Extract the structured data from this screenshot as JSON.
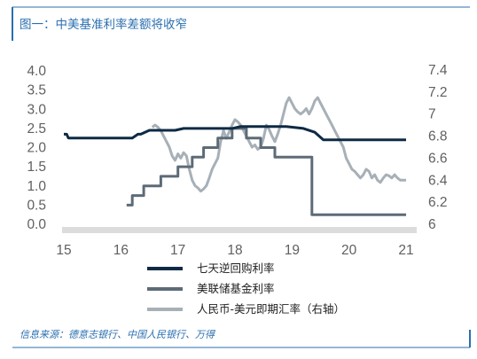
{
  "title": "图一：中美基准利率差额将收窄",
  "source": "信息来源：德意志银行、中国人民银行、万得",
  "colors": {
    "frame": "#2a6fb0",
    "reverse_repo": "#0e2a44",
    "fed_rate": "#5d6b78",
    "usdcny": "#a7b0b7",
    "axis_band": "#dcdcdc"
  },
  "chart_data": {
    "type": "line",
    "x_ticks": [
      "15",
      "16",
      "17",
      "18",
      "19",
      "20",
      "21"
    ],
    "xlim": [
      2015,
      2021
    ],
    "y_left_ticks": [
      "0.0",
      "0.5",
      "1.0",
      "1.5",
      "2.0",
      "2.5",
      "3.0",
      "3.5",
      "4.0"
    ],
    "y_left_lim": [
      0,
      4
    ],
    "y_right_ticks": [
      "6",
      "6.2",
      "6.4",
      "6.6",
      "6.8",
      "7",
      "7.2",
      "7.4"
    ],
    "y_right_lim": [
      6,
      7.4
    ],
    "grid": false,
    "legend_position": "bottom",
    "series": [
      {
        "name": "七天逆回购利率",
        "axis": "left",
        "color": "#0e2a44",
        "step": true,
        "x": [
          2015.0,
          2015.05,
          2015.08,
          2016.2,
          2016.3,
          2016.35,
          2016.5,
          2016.95,
          2017.1,
          2017.95,
          2018.1,
          2018.9,
          2019.2,
          2019.4,
          2019.55,
          2021.0
        ],
        "y": [
          2.35,
          2.35,
          2.25,
          2.25,
          2.35,
          2.35,
          2.45,
          2.45,
          2.5,
          2.5,
          2.55,
          2.55,
          2.5,
          2.4,
          2.2,
          2.2
        ]
      },
      {
        "name": "美联储基金利率",
        "axis": "left",
        "color": "#5d6b78",
        "step": true,
        "x": [
          2016.1,
          2016.2,
          2016.2,
          2016.4,
          2016.4,
          2016.7,
          2016.7,
          2017.0,
          2017.0,
          2017.25,
          2017.25,
          2017.45,
          2017.45,
          2017.7,
          2017.7,
          2017.95,
          2017.95,
          2018.2,
          2018.2,
          2018.45,
          2018.45,
          2018.7,
          2018.7,
          2018.95,
          2018.95,
          2019.1,
          2019.1,
          2019.35,
          2019.35,
          2021.0
        ],
        "y": [
          0.5,
          0.5,
          0.75,
          0.75,
          1.0,
          1.0,
          1.25,
          1.25,
          1.5,
          1.5,
          1.75,
          1.75,
          2.0,
          2.0,
          2.25,
          2.25,
          2.5,
          2.5,
          2.25,
          2.25,
          2.0,
          2.0,
          1.75,
          1.75,
          1.75,
          1.75,
          1.75,
          1.75,
          0.25,
          0.25
        ]
      },
      {
        "name": "人民币-美元即期汇率（右轴）",
        "axis": "right",
        "color": "#a7b0b7",
        "step": false,
        "x": [
          2016.55,
          2016.6,
          2016.65,
          2016.7,
          2016.75,
          2016.8,
          2016.85,
          2016.9,
          2016.95,
          2017.0,
          2017.05,
          2017.1,
          2017.15,
          2017.2,
          2017.25,
          2017.3,
          2017.35,
          2017.4,
          2017.45,
          2017.5,
          2017.55,
          2017.6,
          2017.65,
          2017.7,
          2017.75,
          2017.8,
          2017.85,
          2017.9,
          2017.95,
          2018.0,
          2018.05,
          2018.1,
          2018.15,
          2018.2,
          2018.25,
          2018.3,
          2018.35,
          2018.4,
          2018.45,
          2018.5,
          2018.55,
          2018.6,
          2018.65,
          2018.7,
          2018.75,
          2018.8,
          2018.85,
          2018.9,
          2018.95,
          2019.0,
          2019.05,
          2019.1,
          2019.15,
          2019.2,
          2019.25,
          2019.3,
          2019.35,
          2019.4,
          2019.45,
          2019.5,
          2019.55,
          2019.6,
          2019.65,
          2019.7,
          2019.75,
          2019.8,
          2019.85,
          2019.9,
          2019.95,
          2020.0,
          2020.05,
          2020.1,
          2020.15,
          2020.2,
          2020.25,
          2020.3,
          2020.35,
          2020.4,
          2020.45,
          2020.5,
          2020.55,
          2020.6,
          2020.65,
          2020.7,
          2020.75,
          2020.8,
          2020.85,
          2020.9,
          2020.95,
          2021.0
        ],
        "y": [
          6.88,
          6.9,
          6.88,
          6.85,
          6.8,
          6.75,
          6.7,
          6.62,
          6.58,
          6.64,
          6.6,
          6.65,
          6.62,
          6.5,
          6.4,
          6.35,
          6.33,
          6.3,
          6.32,
          6.35,
          6.42,
          6.5,
          6.55,
          6.6,
          6.75,
          6.85,
          6.78,
          6.84,
          6.9,
          6.95,
          6.93,
          6.9,
          6.85,
          6.8,
          6.75,
          6.7,
          6.72,
          6.68,
          6.7,
          6.78,
          6.9,
          6.86,
          6.8,
          6.75,
          6.82,
          6.9,
          7.0,
          7.1,
          7.15,
          7.1,
          7.05,
          7.02,
          7.0,
          7.02,
          7.05,
          7.0,
          7.05,
          7.12,
          7.15,
          7.1,
          7.05,
          7.0,
          6.95,
          6.9,
          6.85,
          6.8,
          6.75,
          6.7,
          6.6,
          6.55,
          6.5,
          6.48,
          6.45,
          6.42,
          6.45,
          6.5,
          6.48,
          6.42,
          6.45,
          6.4,
          6.38,
          6.42,
          6.45,
          6.44,
          6.42,
          6.45,
          6.42,
          6.4,
          6.4,
          6.4
        ]
      }
    ]
  }
}
